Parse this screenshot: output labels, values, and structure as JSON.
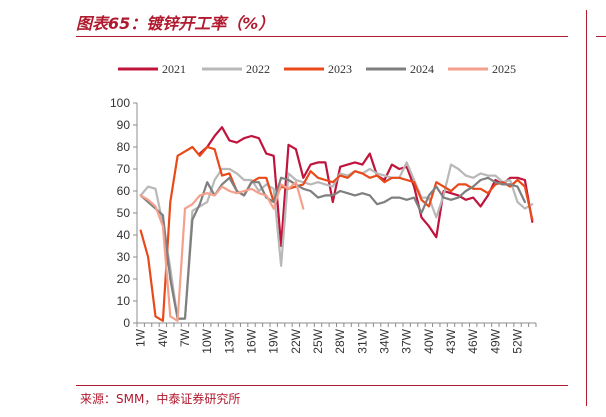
{
  "title": "图表65：镀锌开工率（%）",
  "source": "来源：SMM，中泰证券研究所",
  "chart_data": {
    "type": "line",
    "title": "镀锌开工率（%）",
    "xlabel": "",
    "ylabel": "",
    "ylim": [
      0,
      100
    ],
    "yticks": [
      "0",
      "10",
      "20",
      "30",
      "40",
      "50",
      "60",
      "70",
      "80",
      "90",
      "100"
    ],
    "xticks": [
      "1W",
      "4W",
      "7W",
      "10W",
      "13W",
      "16W",
      "19W",
      "22W",
      "25W",
      "28W",
      "31W",
      "34W",
      "37W",
      "40W",
      "43W",
      "46W",
      "49W",
      "52W"
    ],
    "legend": [
      "2021",
      "2022",
      "2023",
      "2024",
      "2025"
    ],
    "series": [
      {
        "name": "2021",
        "color": "#c0143c",
        "values": [
          null,
          null,
          null,
          null,
          null,
          null,
          null,
          null,
          77,
          80,
          85,
          89,
          83,
          82,
          84,
          85,
          84,
          77,
          76,
          35,
          81,
          79,
          66,
          72,
          73,
          73,
          55,
          71,
          72,
          73,
          72,
          77,
          67,
          65,
          72,
          70,
          71,
          62,
          48,
          44,
          39,
          60,
          59,
          58,
          56,
          57,
          53,
          58,
          65,
          63,
          66,
          66,
          65,
          46
        ]
      },
      {
        "name": "2022",
        "color": "#b8b8b8",
        "values": [
          58,
          62,
          61,
          45,
          25,
          2,
          2,
          51,
          53,
          55,
          65,
          70,
          70,
          68,
          65,
          65,
          60,
          63,
          61,
          26,
          68,
          65,
          64,
          63,
          64,
          63,
          62,
          68,
          67,
          69,
          68,
          70,
          68,
          67,
          66,
          66,
          73,
          65,
          57,
          57,
          48,
          58,
          72,
          70,
          67,
          66,
          68,
          67,
          67,
          64,
          65,
          55,
          52,
          54
        ]
      },
      {
        "name": "2023",
        "color": "#e84a1a",
        "values": [
          42,
          30,
          3,
          1,
          55,
          76,
          78,
          80,
          76,
          80,
          79,
          67,
          68,
          60,
          58,
          64,
          66,
          66,
          55,
          62,
          61,
          62,
          63,
          69,
          66,
          65,
          64,
          67,
          66,
          69,
          68,
          66,
          67,
          64,
          66,
          66,
          65,
          64,
          56,
          53,
          64,
          62,
          60,
          63,
          63,
          61,
          61,
          59,
          63,
          64,
          62,
          65,
          62,
          47
        ]
      },
      {
        "name": "2024",
        "color": "#7f7f7f",
        "values": [
          58,
          55,
          52,
          49,
          20,
          2,
          2,
          47,
          54,
          64,
          58,
          63,
          66,
          60,
          58,
          64,
          64,
          57,
          55,
          66,
          65,
          63,
          61,
          60,
          57,
          58,
          58,
          60,
          59,
          58,
          59,
          58,
          54,
          55,
          57,
          57,
          56,
          57,
          50,
          58,
          62,
          57,
          56,
          57,
          60,
          62,
          65,
          66,
          64,
          63,
          63,
          62,
          55,
          null
        ]
      },
      {
        "name": "2025",
        "color": "#f5a08c",
        "values": [
          58,
          56,
          53,
          44,
          3,
          1,
          52,
          54,
          58,
          59,
          58,
          62,
          60,
          59,
          60,
          61,
          59,
          58,
          52,
          63,
          61,
          64,
          52,
          null,
          null,
          null,
          null,
          null,
          null,
          null,
          null,
          null,
          null,
          null,
          null,
          null,
          null,
          null,
          null,
          null,
          null,
          null,
          null,
          null,
          null,
          null,
          null,
          null,
          null,
          null,
          null,
          null,
          null,
          null
        ]
      }
    ]
  }
}
